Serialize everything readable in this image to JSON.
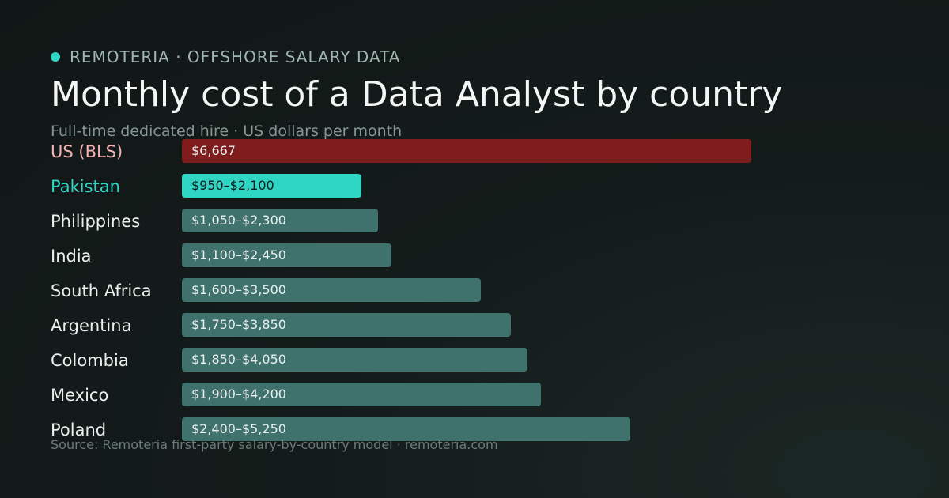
{
  "brand": {
    "label": "REMOTERIA · OFFSHORE SALARY DATA"
  },
  "colors": {
    "benchmark": "#7f1d1d",
    "benchmark_label": "#f2b3b3",
    "highlight": "#2fd6c4",
    "highlight_text": "#0f1c1a",
    "default": "#3f716d",
    "default_text": "#e8efed",
    "row_label": "#e9efed"
  },
  "chart_data": {
    "type": "bar",
    "orientation": "horizontal",
    "title": "Monthly cost of a Data Analyst by country",
    "subtitle": "Full-time dedicated hire · US dollars per month",
    "xlim": [
      0,
      6667
    ],
    "grid": false,
    "categories": [
      "US (BLS)",
      "Pakistan",
      "Philippines",
      "India",
      "South Africa",
      "Argentina",
      "Colombia",
      "Mexico",
      "Poland"
    ],
    "rows": [
      {
        "label": "US (BLS)",
        "low": 6667,
        "high": 6667,
        "value_label": "$6,667",
        "style": "benchmark"
      },
      {
        "label": "Pakistan",
        "low": 950,
        "high": 2100,
        "value_label": "$950–$2,100",
        "style": "highlight"
      },
      {
        "label": "Philippines",
        "low": 1050,
        "high": 2300,
        "value_label": "$1,050–$2,300",
        "style": "default"
      },
      {
        "label": "India",
        "low": 1100,
        "high": 2450,
        "value_label": "$1,100–$2,450",
        "style": "default"
      },
      {
        "label": "South Africa",
        "low": 1600,
        "high": 3500,
        "value_label": "$1,600–$3,500",
        "style": "default"
      },
      {
        "label": "Argentina",
        "low": 1750,
        "high": 3850,
        "value_label": "$1,750–$3,850",
        "style": "default"
      },
      {
        "label": "Colombia",
        "low": 1850,
        "high": 4050,
        "value_label": "$1,850–$4,050",
        "style": "default"
      },
      {
        "label": "Mexico",
        "low": 1900,
        "high": 4200,
        "value_label": "$1,900–$4,200",
        "style": "default"
      },
      {
        "label": "Poland",
        "low": 2400,
        "high": 5250,
        "value_label": "$2,400–$5,250",
        "style": "default"
      }
    ],
    "source": "Source: Remoteria first-party salary-by-country model · remoteria.com"
  }
}
